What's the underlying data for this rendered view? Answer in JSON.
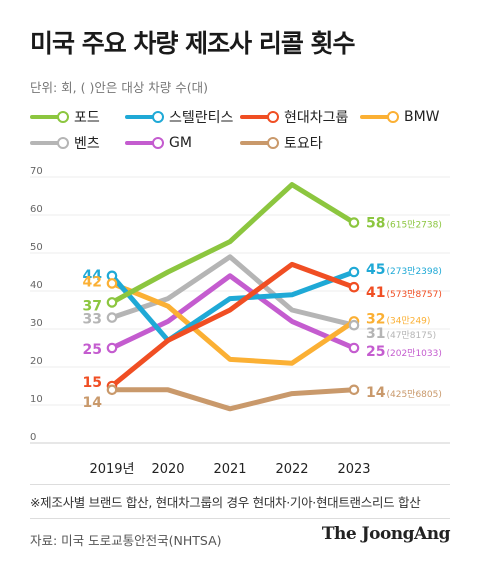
{
  "title": "미국 주요 차량 제조사 리콜 횟수",
  "unit_note": "단위: 회, ( )안은 대상 차량 수(대)",
  "footnote": "※제조사별 브랜드 합산, 현대차그룹의 경우 현대차·기아·현대트랜스리드 합산",
  "source": "자료: 미국 도로교통안전국(NHTSA)",
  "brand": "The JoongAng",
  "chart_data": {
    "type": "line",
    "title": "미국 주요 차량 제조사 리콜 횟수",
    "xlabel": "",
    "ylabel": "",
    "x": [
      "2019년",
      "2020",
      "2021",
      "2022",
      "2023"
    ],
    "yticks": [
      "0",
      "10",
      "20",
      "30",
      "40",
      "50",
      "60",
      "70"
    ],
    "ylim": [
      0,
      70
    ],
    "grid": true,
    "legend_position": "top",
    "series": [
      {
        "name": "포드",
        "color": "#8cc63f",
        "values": [
          37,
          45,
          53,
          68,
          58
        ],
        "start_label": "37",
        "end_label": "58",
        "end_note": "(615만2738)"
      },
      {
        "name": "스텔란티스",
        "color": "#1fa9d6",
        "values": [
          44,
          27,
          38,
          39,
          45
        ],
        "start_label": "44",
        "end_label": "45",
        "end_note": "(273만2398)"
      },
      {
        "name": "현대차그룹",
        "color": "#f04e23",
        "values": [
          15,
          27,
          35,
          47,
          41
        ],
        "start_label": "15",
        "end_label": "41",
        "end_note": "(573만8757)"
      },
      {
        "name": "BMW",
        "color": "#fbb034",
        "values": [
          42,
          36,
          22,
          21,
          32
        ],
        "start_label": "42",
        "end_label": "32",
        "end_note": "(34만249)"
      },
      {
        "name": "벤츠",
        "color": "#b5b5b5",
        "values": [
          33,
          38,
          49,
          35,
          31
        ],
        "start_label": "33",
        "end_label": "31",
        "end_note": "(47만8175)"
      },
      {
        "name": "GM",
        "color": "#c45ccf",
        "values": [
          25,
          32,
          44,
          32,
          25
        ],
        "start_label": "25",
        "end_label": "25",
        "end_note": "(202만1033)"
      },
      {
        "name": "토요타",
        "color": "#c9996b",
        "values": [
          14,
          14,
          9,
          13,
          14
        ],
        "start_label": "14",
        "end_label": "14",
        "end_note": "(425만6805)"
      }
    ]
  }
}
